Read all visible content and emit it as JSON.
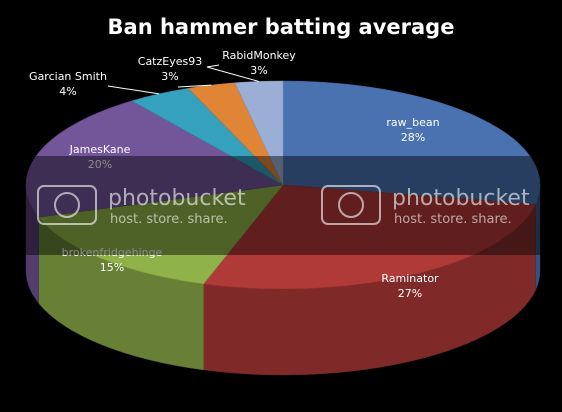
{
  "chart_data": {
    "type": "pie",
    "title": "Ban hammer batting average",
    "slices": [
      {
        "label": "raw_bean",
        "percent_label": "28%",
        "value": 28,
        "color": "#4a72b0"
      },
      {
        "label": "Raminator",
        "percent_label": "27%",
        "value": 27,
        "color": "#b03a37"
      },
      {
        "label": "brokenfridgehinge",
        "percent_label": "15%",
        "value": 15,
        "color": "#8fb24a"
      },
      {
        "label": "JamesKane",
        "percent_label": "20%",
        "value": 20,
        "color": "#73559a"
      },
      {
        "label": "Garcian Smith",
        "percent_label": "4%",
        "value": 4,
        "color": "#36a1bd"
      },
      {
        "label": "CatzEyes93",
        "percent_label": "3%",
        "value": 3,
        "color": "#e08535"
      },
      {
        "label": "RabidMonkey",
        "percent_label": "3%",
        "value": 3,
        "color": "#9aaed6"
      }
    ],
    "legend": "none"
  },
  "watermark": {
    "brand": "photobucket",
    "tagline": "host. store. share."
  }
}
